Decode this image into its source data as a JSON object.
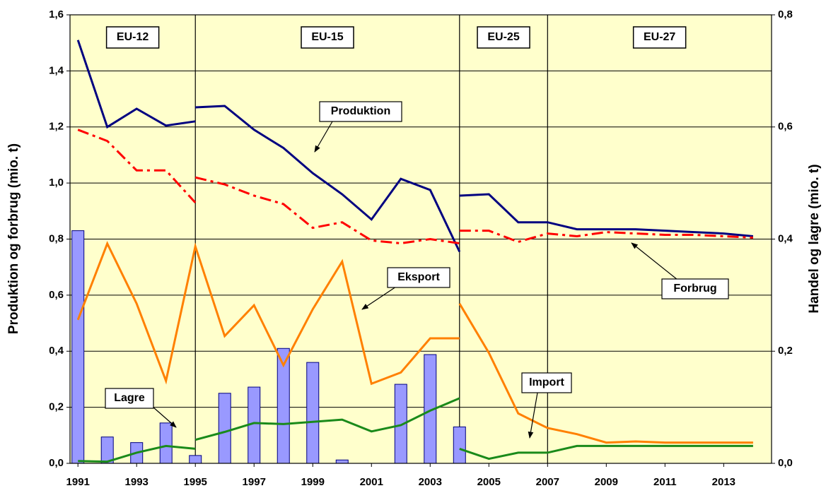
{
  "chart_data": {
    "type": "line",
    "y_title": "Produktion og forbrug (mio. t)",
    "y2_title": "Handel og lagre (mio. t)",
    "xlim": [
      1990.73,
      2014.63
    ],
    "xticks": [
      1991,
      1993,
      1995,
      1997,
      1999,
      2001,
      2003,
      2005,
      2007,
      2009,
      2011,
      2013
    ],
    "ylim": [
      0,
      1.6
    ],
    "yticks": [
      {
        "value": 0,
        "label": "0,0"
      },
      {
        "value": 0.2,
        "label": "0,2"
      },
      {
        "value": 0.4,
        "label": "0,4"
      },
      {
        "value": 0.6,
        "label": "0,6"
      },
      {
        "value": 0.8,
        "label": "0,8"
      },
      {
        "value": 1.0,
        "label": "1,0"
      },
      {
        "value": 1.2,
        "label": "1,2"
      },
      {
        "value": 1.4,
        "label": "1,4"
      },
      {
        "value": 1.6,
        "label": "1,6"
      }
    ],
    "y2lim": [
      0,
      0.8
    ],
    "y2ticks": [
      {
        "value": 0,
        "label": "0,0"
      },
      {
        "value": 0.2,
        "label": "0,2"
      },
      {
        "value": 0.4,
        "label": "0,4"
      },
      {
        "value": 0.6,
        "label": "0,6"
      },
      {
        "value": 0.8,
        "label": "0,8"
      }
    ],
    "grid": true,
    "background": "#ffffcc",
    "period_boundaries": [
      1995,
      2004,
      2007
    ],
    "period_labels": [
      "EU-12",
      "EU-15",
      "EU-25",
      "EU-27"
    ],
    "series": [
      {
        "name": "Lagre",
        "type": "bar",
        "color": "#9999ff",
        "axis": "y2",
        "x": [
          1991,
          1992,
          1993,
          1994,
          1995,
          1996,
          1997,
          1998,
          1999,
          2000,
          2002,
          2003,
          2004
        ],
        "values": [
          0.415,
          0.047,
          0.037,
          0.072,
          0.014,
          0.125,
          0.136,
          0.205,
          0.18,
          0.006,
          0.141,
          0.194,
          0.065
        ]
      },
      {
        "name": "Produktion",
        "type": "line",
        "color": "#000080",
        "axis": "y",
        "line_style": "solid",
        "x": [
          1991,
          1992,
          1993,
          1994,
          1995,
          null,
          1995,
          1996,
          1997,
          1998,
          1999,
          2000,
          2001,
          2002,
          2003,
          2004,
          null,
          2004,
          2005,
          2006,
          2007,
          2008,
          2009,
          2010,
          2011,
          2012,
          2013,
          2014
        ],
        "values": [
          1.51,
          1.2,
          1.265,
          1.205,
          1.22,
          null,
          1.27,
          1.275,
          1.19,
          1.125,
          1.035,
          0.96,
          0.87,
          1.015,
          0.975,
          0.755,
          null,
          0.955,
          0.96,
          0.86,
          0.86,
          0.835,
          0.835,
          0.835,
          0.83,
          0.825,
          0.82,
          0.81
        ]
      },
      {
        "name": "Forbrug",
        "type": "line",
        "color": "#ff0000",
        "axis": "y",
        "line_style": "dashdot",
        "x": [
          1991,
          1992,
          1993,
          1994,
          1995,
          null,
          1995,
          1996,
          1997,
          1998,
          1999,
          2000,
          2001,
          2002,
          2003,
          2004,
          null,
          2004,
          2005,
          2006,
          2007,
          2008,
          2009,
          2010,
          2011,
          2012,
          2013,
          2014
        ],
        "values": [
          1.19,
          1.15,
          1.045,
          1.045,
          0.93,
          null,
          1.02,
          0.995,
          0.955,
          0.925,
          0.84,
          0.86,
          0.795,
          0.785,
          0.8,
          0.785,
          null,
          0.83,
          0.83,
          0.79,
          0.82,
          0.81,
          0.825,
          0.82,
          0.815,
          0.815,
          0.81,
          0.805
        ]
      },
      {
        "name": "Eksport",
        "type": "line",
        "color": "#ff8000",
        "axis": "y2",
        "line_style": "solid",
        "x": [
          1991,
          1992,
          1993,
          1994,
          1995,
          1996,
          1997,
          1998,
          1999,
          2000,
          2001,
          2002,
          2003,
          2004,
          null,
          2004,
          2005,
          2006,
          2007,
          2008,
          2009,
          2010,
          2011,
          2012,
          2013,
          2014
        ],
        "values": [
          0.256,
          0.392,
          0.285,
          0.147,
          0.387,
          0.227,
          0.282,
          0.175,
          0.275,
          0.36,
          0.142,
          0.162,
          0.223,
          0.223,
          null,
          0.285,
          0.197,
          0.089,
          0.063,
          0.052,
          0.037,
          0.039,
          0.037,
          0.037,
          0.037,
          0.037
        ]
      },
      {
        "name": "Import",
        "type": "line",
        "color": "#1a8a1a",
        "axis": "y2",
        "line_style": "solid",
        "x": [
          1991,
          1992,
          1993,
          1994,
          1995,
          null,
          1995,
          1996,
          1997,
          1998,
          1999,
          2000,
          2001,
          2002,
          2003,
          2004,
          null,
          2004,
          2005,
          2006,
          2007,
          2008,
          2009,
          2010,
          2011,
          2012,
          2013,
          2014
        ],
        "values": [
          0.004,
          0.003,
          0.019,
          0.031,
          0.026,
          null,
          0.042,
          0.056,
          0.072,
          0.07,
          0.074,
          0.078,
          0.057,
          0.068,
          0.094,
          0.116,
          null,
          0.026,
          0.008,
          0.019,
          0.019,
          0.031,
          0.031,
          0.031,
          0.031,
          0.031,
          0.031,
          0.031
        ]
      }
    ]
  }
}
